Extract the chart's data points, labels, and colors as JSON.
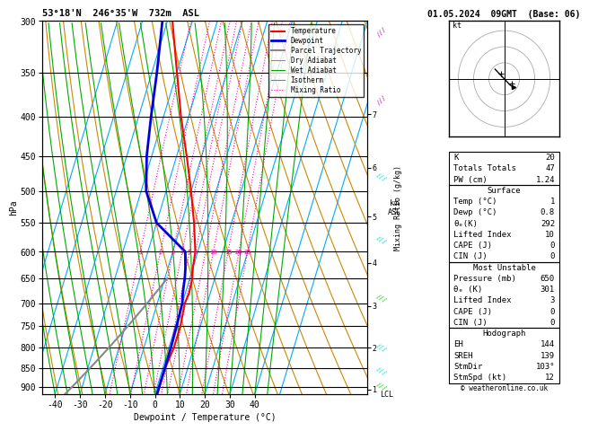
{
  "title_left": "53°18'N  246°35'W  732m  ASL",
  "title_right": "01.05.2024  09GMT  (Base: 06)",
  "xlabel": "Dewpoint / Temperature (°C)",
  "ylabel_left": "hPa",
  "pressure_ticks": [
    300,
    350,
    400,
    450,
    500,
    550,
    600,
    650,
    700,
    750,
    800,
    850,
    900
  ],
  "temp_min": -45,
  "temp_max": 40,
  "P_min": 300,
  "P_max": 920,
  "legend_items": [
    {
      "label": "Temperature",
      "color": "#ff0000",
      "lw": 1.5,
      "ls": "solid"
    },
    {
      "label": "Dewpoint",
      "color": "#0000dd",
      "lw": 2.0,
      "ls": "solid"
    },
    {
      "label": "Parcel Trajectory",
      "color": "#888888",
      "lw": 1.5,
      "ls": "solid"
    },
    {
      "label": "Dry Adiabat",
      "color": "#cc8800",
      "lw": 0.8,
      "ls": "solid"
    },
    {
      "label": "Wet Adiabat",
      "color": "#00aa00",
      "lw": 0.8,
      "ls": "solid"
    },
    {
      "label": "Isotherm",
      "color": "#00aaff",
      "lw": 0.8,
      "ls": "solid"
    },
    {
      "label": "Mixing Ratio",
      "color": "#ff00aa",
      "lw": 0.8,
      "ls": "dotted"
    }
  ],
  "temp_profile": {
    "pressure": [
      300,
      350,
      400,
      450,
      500,
      550,
      600,
      630,
      650,
      680,
      700,
      750,
      800,
      850,
      900,
      920
    ],
    "temperature": [
      -38,
      -30,
      -23,
      -16,
      -10,
      -5,
      -1,
      0,
      1,
      1.5,
      1,
      2,
      2,
      1,
      1,
      1
    ]
  },
  "dewp_profile": {
    "pressure": [
      300,
      350,
      400,
      450,
      500,
      550,
      600,
      630,
      650,
      680,
      700,
      750,
      800,
      850,
      900,
      920
    ],
    "dewpoint": [
      -42,
      -38,
      -35,
      -32,
      -28,
      -20,
      -5,
      -3,
      -2,
      -1,
      0,
      0.5,
      0.8,
      0.8,
      0.8,
      0.8
    ]
  },
  "parcel_profile": {
    "pressure": [
      650,
      700,
      750,
      800,
      850,
      900,
      920
    ],
    "temperature": [
      -9,
      -14,
      -19,
      -24,
      -29,
      -34,
      -36
    ]
  },
  "km_asl_ticks": [
    1,
    2,
    3,
    4,
    5,
    6,
    7
  ],
  "km_asl_pressures": [
    907,
    800,
    706,
    620,
    540,
    466,
    397
  ],
  "lcl_pressure": 920,
  "mr_label_vals": [
    1,
    2,
    3,
    4,
    5,
    6,
    10,
    15,
    20,
    25
  ],
  "mr_line_vals": [
    1,
    2,
    3,
    4,
    5,
    6,
    8,
    10,
    15,
    20,
    25
  ],
  "isotherm_color": "#00aaff",
  "dry_adiabat_color": "#cc8800",
  "wet_adiabat_color": "#00aa00",
  "mixing_ratio_color": "#ff00aa",
  "temp_color": "#ff0000",
  "dewp_color": "#0000dd",
  "parcel_color": "#888888",
  "stats": {
    "K": 20,
    "Totals_Totals": 47,
    "PW_cm": 1.24,
    "Surface_Temp_C": 1,
    "Surface_Dewp_C": 0.8,
    "Surface_theta_e_K": 292,
    "Surface_LiftedIndex": 10,
    "Surface_CAPE_J": 0,
    "Surface_CIN_J": 0,
    "MU_Pressure_mb": 650,
    "MU_theta_e_K": 301,
    "MU_LiftedIndex": 3,
    "MU_CAPE_J": 0,
    "MU_CIN_J": 0,
    "EH": 144,
    "SREH": 139,
    "StmDir_deg": 103,
    "StmSpd_kt": 12
  }
}
